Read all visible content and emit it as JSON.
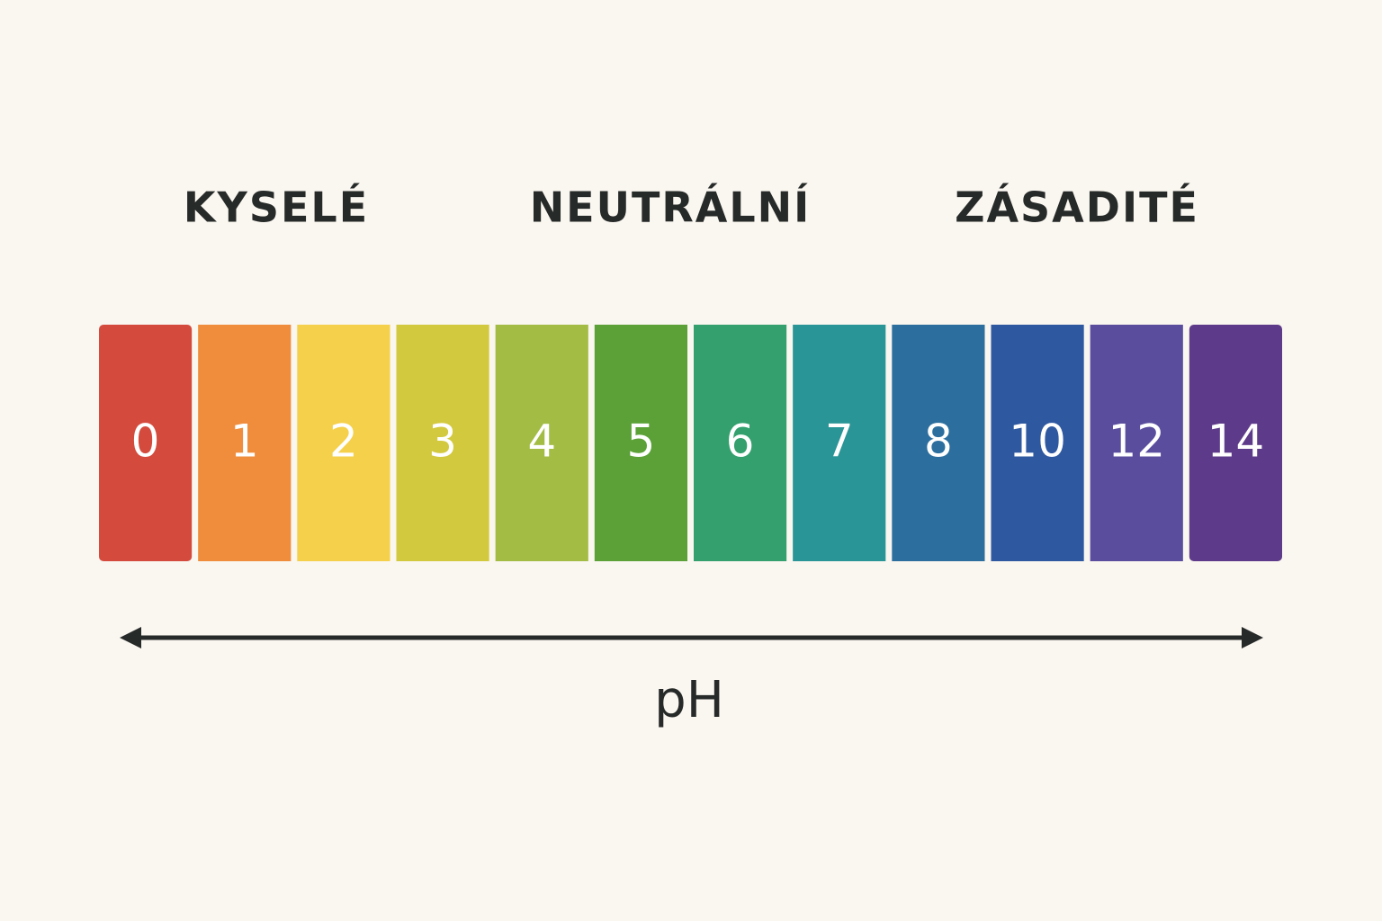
{
  "headings": [
    "KYSELÉ",
    "NEUTRÁLNÍ",
    "ZÁSADITÉ"
  ],
  "segments": [
    {
      "label": "0",
      "color": "#d44b3e"
    },
    {
      "label": "1",
      "color": "#ef8d3c"
    },
    {
      "label": "2",
      "color": "#f5d04a"
    },
    {
      "label": "3",
      "color": "#d2c93f"
    },
    {
      "label": "4",
      "color": "#a3bc44"
    },
    {
      "label": "5",
      "color": "#5ba137"
    },
    {
      "label": "6",
      "color": "#33a06e"
    },
    {
      "label": "7",
      "color": "#2a9596"
    },
    {
      "label": "8",
      "color": "#2c6f9e"
    },
    {
      "label": "10",
      "color": "#2e58a0"
    },
    {
      "label": "12",
      "color": "#5a4d9e"
    },
    {
      "label": "14",
      "color": "#5e3b8a"
    }
  ],
  "axis_label": "pH"
}
